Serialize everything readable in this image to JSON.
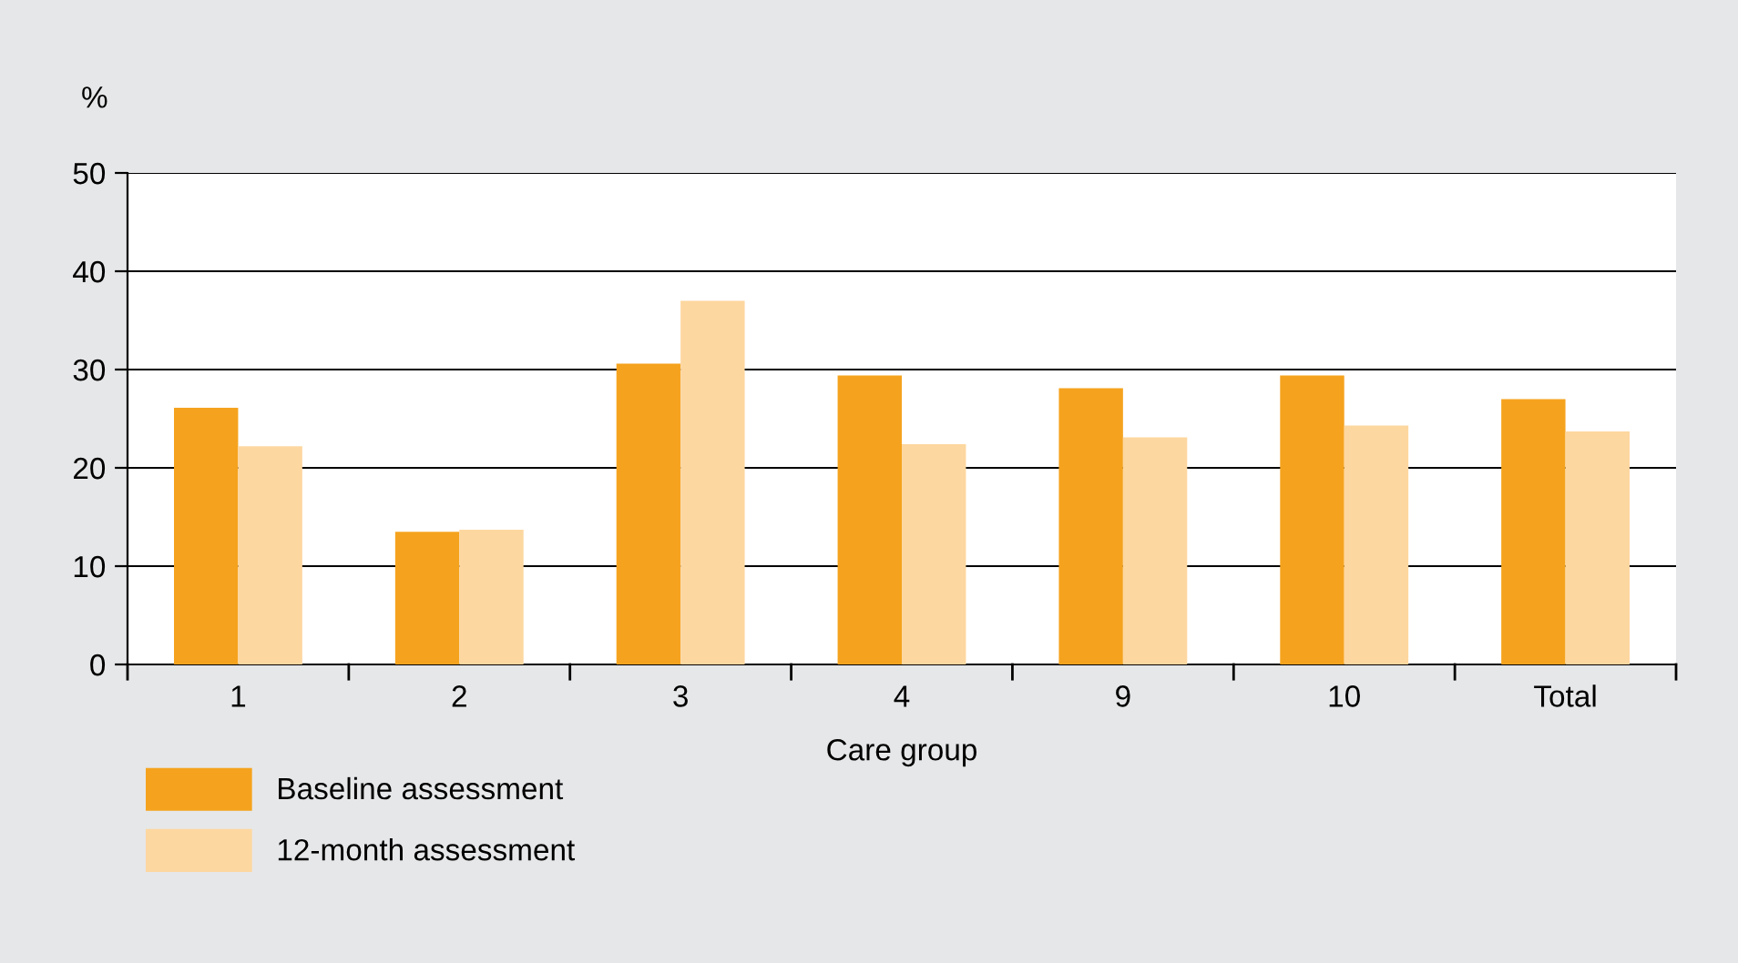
{
  "chart_data": {
    "type": "bar",
    "ylabel": "%",
    "xlabel": "Care group",
    "categories": [
      "1",
      "2",
      "3",
      "4",
      "9",
      "10",
      "Total"
    ],
    "series": [
      {
        "name": "Baseline assessment",
        "color": "#f5a31e",
        "values": [
          26.1,
          13.5,
          30.6,
          29.4,
          28.1,
          29.4,
          27.0
        ]
      },
      {
        "name": "12-month assessment",
        "color": "#fdd7a0",
        "values": [
          22.2,
          13.7,
          37.0,
          22.4,
          23.1,
          24.3,
          23.7
        ]
      }
    ],
    "ylim": [
      0,
      50
    ],
    "yticks": [
      0,
      10,
      20,
      30,
      40,
      50
    ],
    "grid": "y",
    "legend": "bottom left"
  }
}
